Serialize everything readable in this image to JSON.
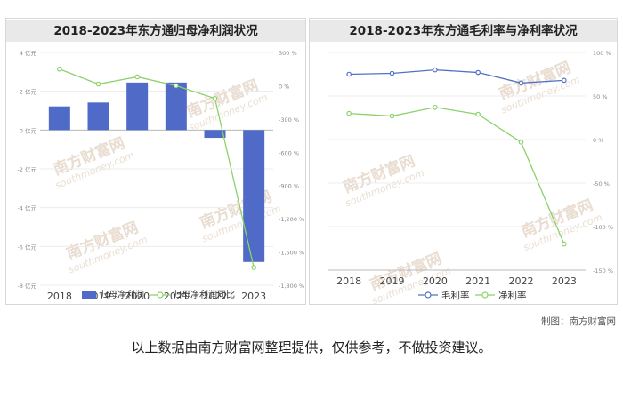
{
  "left": {
    "title": "2018-2023年东方通归母净利润状况"
  },
  "right": {
    "title": "2018-2023年东方通毛利率与净利率状况"
  },
  "watermark": [
    "南方财富网",
    "southmoney.com"
  ],
  "footer": {
    "credit": "制图：南方财富网",
    "disclaimer": "以上数据由南方财富网整理提供，仅供参考，不做投资建议。"
  },
  "chart_data": [
    {
      "type": "bar",
      "title": "2018-2023年东方通归母净利润状况",
      "categories": [
        "2018",
        "2019",
        "2020",
        "2021",
        "2022",
        "2023"
      ],
      "series": [
        {
          "name": "归母净利润",
          "type": "bar",
          "axis": "left",
          "color": "#4f6bc7",
          "values": [
            1.22,
            1.42,
            2.45,
            2.45,
            -0.4,
            -6.8
          ]
        },
        {
          "name": "归母净利润同比",
          "type": "line",
          "axis": "right",
          "color": "#8bd26b",
          "values": [
            150,
            15,
            80,
            0,
            -115,
            -1640
          ]
        }
      ],
      "left_axis": {
        "ticks": [
          "4 亿元",
          "2 亿元",
          "0 亿元",
          "-2 亿元",
          "-4 亿元",
          "-6 亿元",
          "-8 亿元"
        ],
        "range": [
          -8,
          4
        ]
      },
      "right_axis": {
        "ticks": [
          "300 %",
          "0 %",
          "-300 %",
          "-600 %",
          "-900 %",
          "-1,200 %",
          "-1,500 %",
          "-1,800 %"
        ],
        "range": [
          -1800,
          300
        ]
      },
      "legend": "bottom"
    },
    {
      "type": "line",
      "title": "2018-2023年东方通毛利率与净利率状况",
      "categories": [
        "2018",
        "2019",
        "2020",
        "2021",
        "2022",
        "2023"
      ],
      "series": [
        {
          "name": "毛利率",
          "color": "#5470c6",
          "values": [
            75,
            76,
            80,
            77,
            65,
            68
          ]
        },
        {
          "name": "净利率",
          "color": "#8bd26b",
          "values": [
            30,
            27,
            37,
            29,
            -3,
            -120
          ]
        }
      ],
      "right_axis": {
        "ticks": [
          "100 %",
          "50 %",
          "0 %",
          "-50 %",
          "-100 %",
          "-150 %"
        ],
        "range": [
          -150,
          100
        ]
      },
      "legend": "bottom"
    }
  ]
}
